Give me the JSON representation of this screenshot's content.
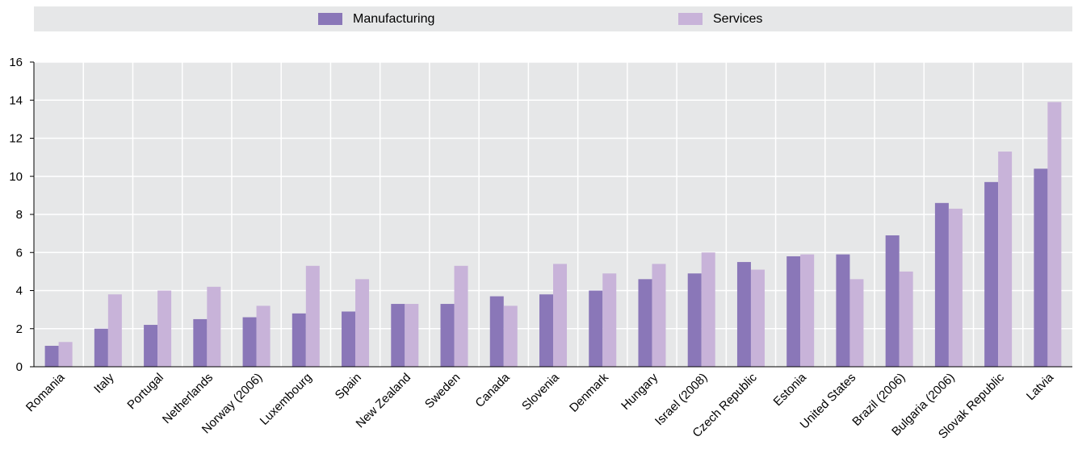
{
  "chart_data": {
    "type": "bar",
    "categories": [
      "Romania",
      "Italy",
      "Portugal",
      "Netherlands",
      "Norway (2006)",
      "Luxembourg",
      "Spain",
      "New Zealand",
      "Sweden",
      "Canada",
      "Slovenia",
      "Denmark",
      "Hungary",
      "Israel (2008)",
      "Czech Republic",
      "Estonia",
      "United States",
      "Brazil (2006)",
      "Bulgaria (2006)",
      "Slovak Republic",
      "Latvia"
    ],
    "series": [
      {
        "name": "Manufacturing",
        "color": "#8a77b8",
        "values": [
          1.1,
          2.0,
          2.2,
          2.5,
          2.6,
          2.8,
          2.9,
          3.3,
          3.3,
          3.7,
          3.8,
          4.0,
          4.6,
          4.9,
          5.5,
          5.8,
          5.9,
          6.9,
          8.6,
          9.7,
          10.4
        ]
      },
      {
        "name": "Services",
        "color": "#c8b3d9",
        "values": [
          1.3,
          3.8,
          4.0,
          4.2,
          3.2,
          5.3,
          4.6,
          3.3,
          5.3,
          3.2,
          5.4,
          4.9,
          5.4,
          6.0,
          5.1,
          5.9,
          4.6,
          5.0,
          8.3,
          11.3,
          13.9
        ]
      }
    ],
    "ylim": [
      0,
      16
    ],
    "yticks": [
      0,
      2,
      4,
      6,
      8,
      10,
      12,
      14,
      16
    ],
    "grid": true,
    "legend_position": "top",
    "plot_background": "#e6e7e8"
  }
}
